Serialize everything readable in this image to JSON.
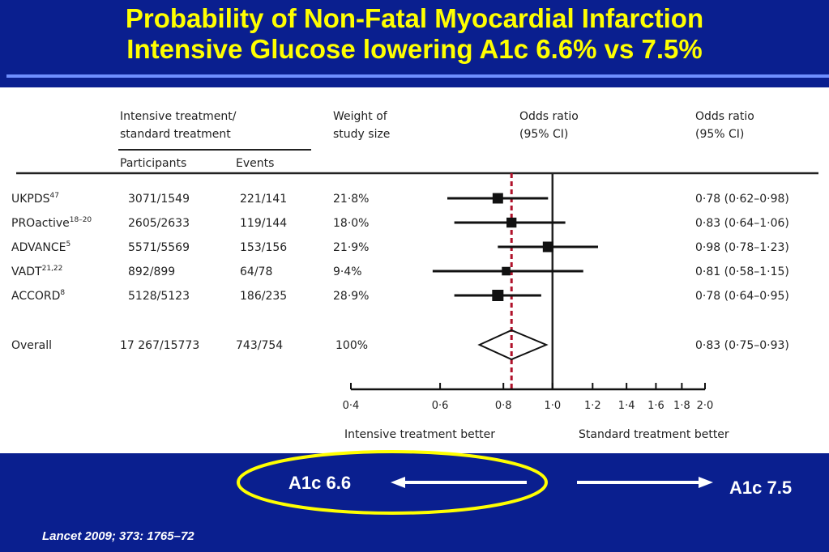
{
  "slide": {
    "title_line1": "Probability of Non-Fatal Myocardial Infarction",
    "title_line2": "Intensive Glucose lowering A1c 6.6% vs 7.5%",
    "left_label": "A1c 6.6",
    "right_label": "A1c 7.5",
    "citation": "Lancet 2009; 373: 1765–72"
  },
  "colors": {
    "background": "#0a1f8f",
    "title": "#ffff00",
    "ellipse": "#ffff00",
    "reference_line": "#b0122a"
  },
  "chart_data": {
    "type": "forest",
    "headers": {
      "group": "Intensive treatment/",
      "group2": "standard treatment",
      "participants": "Participants",
      "events": "Events",
      "weight": "Weight of",
      "weight2": "study size",
      "or_plot": "Odds ratio",
      "or_plot2": "(95% CI)",
      "or_text": "Odds ratio",
      "or_text2": "(95% CI)"
    },
    "studies": [
      {
        "name": "UKPDS",
        "sup": "47",
        "participants": "3071/1549",
        "events": "221/141",
        "weight": "21·8%",
        "or": 0.78,
        "lo": 0.62,
        "hi": 0.98,
        "or_label": "0·78 (0·62–0·98)"
      },
      {
        "name": "PROactive",
        "sup": "18–20",
        "participants": "2605/2633",
        "events": "119/144",
        "weight": "18·0%",
        "or": 0.83,
        "lo": 0.64,
        "hi": 1.06,
        "or_label": "0·83 (0·64–1·06)"
      },
      {
        "name": "ADVANCE",
        "sup": "5",
        "participants": "5571/5569",
        "events": "153/156",
        "weight": "21·9%",
        "or": 0.98,
        "lo": 0.78,
        "hi": 1.23,
        "or_label": "0·98 (0·78–1·23)"
      },
      {
        "name": "VADT",
        "sup": "21,22",
        "participants": "892/899",
        "events": "64/78",
        "weight": "9·4%",
        "or": 0.81,
        "lo": 0.58,
        "hi": 1.15,
        "or_label": "0·81 (0·58–1·15)"
      },
      {
        "name": "ACCORD",
        "sup": "8",
        "participants": "5128/5123",
        "events": "186/235",
        "weight": "28·9%",
        "or": 0.78,
        "lo": 0.64,
        "hi": 0.95,
        "or_label": "0·78 (0·64–0·95)"
      }
    ],
    "overall": {
      "name": "Overall",
      "participants": "17 267/15773",
      "events": "743/754",
      "weight": "100%",
      "or": 0.83,
      "lo": 0.75,
      "hi": 0.93,
      "or_label": "0·83 (0·75–0·93)"
    },
    "x_scale": "log",
    "xlim": [
      0.4,
      2.0
    ],
    "x_ticks": [
      {
        "v": 0.4,
        "label": "0·4"
      },
      {
        "v": 0.6,
        "label": "0·6"
      },
      {
        "v": 0.8,
        "label": "0·8"
      },
      {
        "v": 1.0,
        "label": "1·0"
      },
      {
        "v": 1.2,
        "label": "1·2"
      },
      {
        "v": 1.4,
        "label": "1·4"
      },
      {
        "v": 1.6,
        "label": "1·6"
      },
      {
        "v": 1.8,
        "label": "1·8"
      },
      {
        "v": 2.0,
        "label": "2·0"
      }
    ],
    "null_line": 1.0,
    "overall_line": 0.83,
    "favours_left": "Intensive treatment better",
    "favours_right": "Standard treatment better"
  }
}
